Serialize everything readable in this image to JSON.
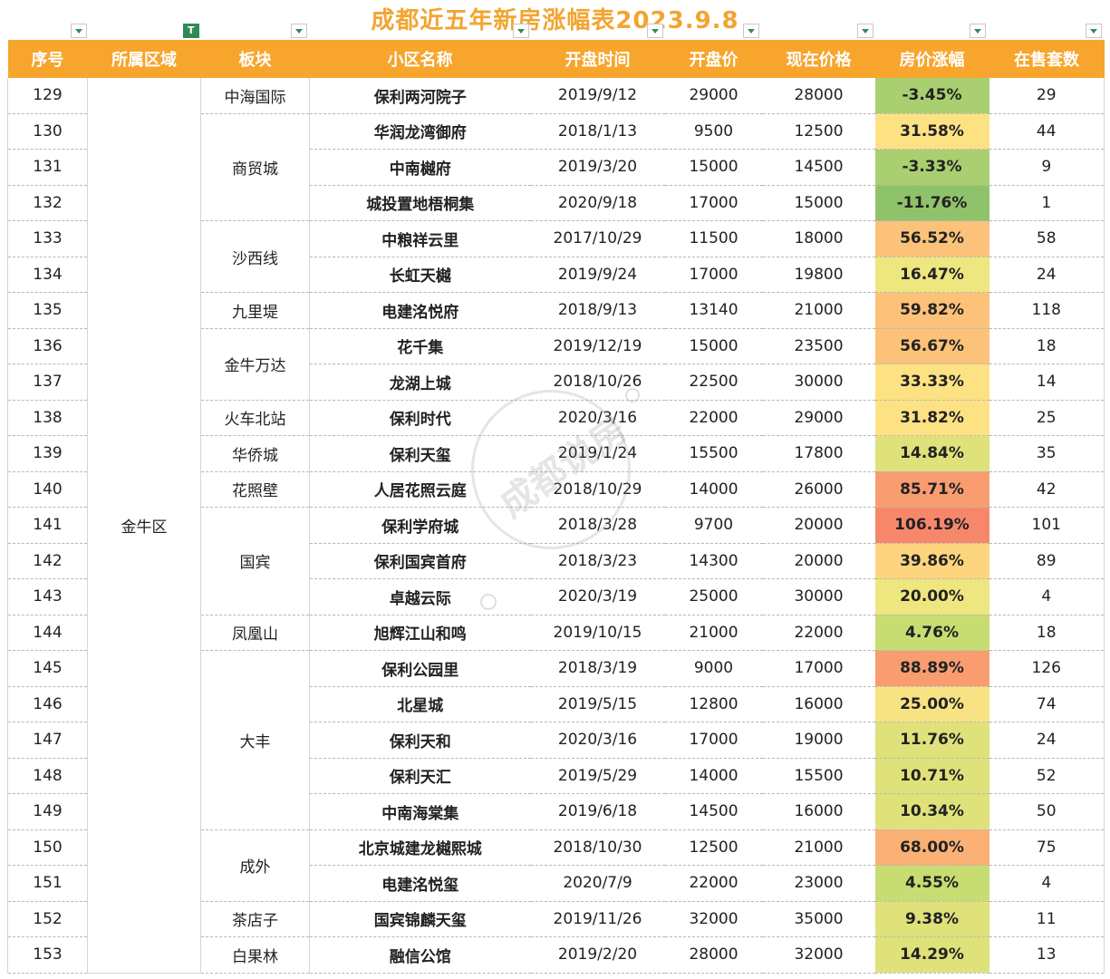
{
  "title": "成都近五年新房涨幅表2023.9.8",
  "headers": [
    "序号",
    "所属区域",
    "板块",
    "小区名称",
    "开盘时间",
    "开盘价",
    "现在价格",
    "房价涨幅",
    "在售套数"
  ],
  "district": "金牛区",
  "watermark_text": "成都说房",
  "colors": {
    "header_bg": "#f7a52d",
    "title": "#f2a531"
  },
  "sectors": [
    {
      "name": "中海国际",
      "rows": 1
    },
    {
      "name": "商贸城",
      "rows": 3
    },
    {
      "name": "沙西线",
      "rows": 2
    },
    {
      "name": "九里堤",
      "rows": 1
    },
    {
      "name": "金牛万达",
      "rows": 2
    },
    {
      "name": "火车北站",
      "rows": 1
    },
    {
      "name": "华侨城",
      "rows": 1
    },
    {
      "name": "花照壁",
      "rows": 1
    },
    {
      "name": "国宾",
      "rows": 3
    },
    {
      "name": "凤凰山",
      "rows": 1
    },
    {
      "name": "大丰",
      "rows": 5
    },
    {
      "name": "成外",
      "rows": 2
    },
    {
      "name": "茶店子",
      "rows": 1
    },
    {
      "name": "白果林",
      "rows": 1
    }
  ],
  "rows": [
    {
      "id": "129",
      "name": "保利两河院子",
      "date": "2019/9/12",
      "open": "29000",
      "now": "28000",
      "pct": "-3.45%",
      "pct_val": -3.45,
      "stock": "29"
    },
    {
      "id": "130",
      "name": "华润龙湾御府",
      "date": "2018/1/13",
      "open": "9500",
      "now": "12500",
      "pct": "31.58%",
      "pct_val": 31.58,
      "stock": "44"
    },
    {
      "id": "131",
      "name": "中南樾府",
      "date": "2019/3/20",
      "open": "15000",
      "now": "14500",
      "pct": "-3.33%",
      "pct_val": -3.33,
      "stock": "9"
    },
    {
      "id": "132",
      "name": "城投置地梧桐集",
      "date": "2020/9/18",
      "open": "17000",
      "now": "15000",
      "pct": "-11.76%",
      "pct_val": -11.76,
      "stock": "1"
    },
    {
      "id": "133",
      "name": "中粮祥云里",
      "date": "2017/10/29",
      "open": "11500",
      "now": "18000",
      "pct": "56.52%",
      "pct_val": 56.52,
      "stock": "58"
    },
    {
      "id": "134",
      "name": "长虹天樾",
      "date": "2019/9/24",
      "open": "17000",
      "now": "19800",
      "pct": "16.47%",
      "pct_val": 16.47,
      "stock": "24"
    },
    {
      "id": "135",
      "name": "电建洺悦府",
      "date": "2018/9/13",
      "open": "13140",
      "now": "21000",
      "pct": "59.82%",
      "pct_val": 59.82,
      "stock": "118"
    },
    {
      "id": "136",
      "name": "花千集",
      "date": "2019/12/19",
      "open": "15000",
      "now": "23500",
      "pct": "56.67%",
      "pct_val": 56.67,
      "stock": "18"
    },
    {
      "id": "137",
      "name": "龙湖上城",
      "date": "2018/10/26",
      "open": "22500",
      "now": "30000",
      "pct": "33.33%",
      "pct_val": 33.33,
      "stock": "14"
    },
    {
      "id": "138",
      "name": "保利时代",
      "date": "2020/3/16",
      "open": "22000",
      "now": "29000",
      "pct": "31.82%",
      "pct_val": 31.82,
      "stock": "25"
    },
    {
      "id": "139",
      "name": "保利天玺",
      "date": "2019/1/24",
      "open": "15500",
      "now": "17800",
      "pct": "14.84%",
      "pct_val": 14.84,
      "stock": "35"
    },
    {
      "id": "140",
      "name": "人居花照云庭",
      "date": "2018/10/29",
      "open": "14000",
      "now": "26000",
      "pct": "85.71%",
      "pct_val": 85.71,
      "stock": "42"
    },
    {
      "id": "141",
      "name": "保利学府城",
      "date": "2018/3/28",
      "open": "9700",
      "now": "20000",
      "pct": "106.19%",
      "pct_val": 106.19,
      "stock": "101"
    },
    {
      "id": "142",
      "name": "保利国宾首府",
      "date": "2018/3/23",
      "open": "14300",
      "now": "20000",
      "pct": "39.86%",
      "pct_val": 39.86,
      "stock": "89"
    },
    {
      "id": "143",
      "name": "卓越云际",
      "date": "2020/3/19",
      "open": "25000",
      "now": "30000",
      "pct": "20.00%",
      "pct_val": 20.0,
      "stock": "4"
    },
    {
      "id": "144",
      "name": "旭辉江山和鸣",
      "date": "2019/10/15",
      "open": "21000",
      "now": "22000",
      "pct": "4.76%",
      "pct_val": 4.76,
      "stock": "18"
    },
    {
      "id": "145",
      "name": "保利公园里",
      "date": "2018/3/19",
      "open": "9000",
      "now": "17000",
      "pct": "88.89%",
      "pct_val": 88.89,
      "stock": "126"
    },
    {
      "id": "146",
      "name": "北星城",
      "date": "2019/5/15",
      "open": "12800",
      "now": "16000",
      "pct": "25.00%",
      "pct_val": 25.0,
      "stock": "74"
    },
    {
      "id": "147",
      "name": "保利天和",
      "date": "2020/3/16",
      "open": "17000",
      "now": "19000",
      "pct": "11.76%",
      "pct_val": 11.76,
      "stock": "24"
    },
    {
      "id": "148",
      "name": "保利天汇",
      "date": "2019/5/29",
      "open": "14000",
      "now": "15500",
      "pct": "10.71%",
      "pct_val": 10.71,
      "stock": "52"
    },
    {
      "id": "149",
      "name": "中南海棠集",
      "date": "2019/6/18",
      "open": "14500",
      "now": "16000",
      "pct": "10.34%",
      "pct_val": 10.34,
      "stock": "50"
    },
    {
      "id": "150",
      "name": "北京城建龙樾熙城",
      "date": "2018/10/30",
      "open": "12500",
      "now": "21000",
      "pct": "68.00%",
      "pct_val": 68.0,
      "stock": "75"
    },
    {
      "id": "151",
      "name": "电建洺悦玺",
      "date": "2020/7/9",
      "open": "22000",
      "now": "23000",
      "pct": "4.55%",
      "pct_val": 4.55,
      "stock": "4"
    },
    {
      "id": "152",
      "name": "国宾锦麟天玺",
      "date": "2019/11/26",
      "open": "32000",
      "now": "35000",
      "pct": "9.38%",
      "pct_val": 9.38,
      "stock": "11"
    },
    {
      "id": "153",
      "name": "融信公馆",
      "date": "2019/2/20",
      "open": "28000",
      "now": "32000",
      "pct": "14.29%",
      "pct_val": 14.29,
      "stock": "13"
    }
  ]
}
